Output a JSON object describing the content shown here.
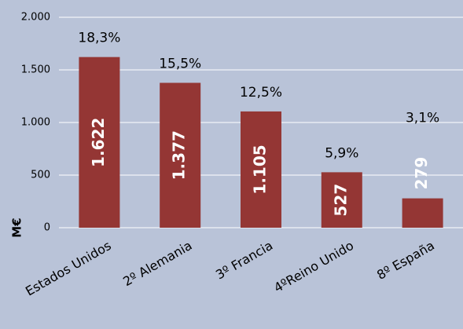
{
  "chart_data": {
    "type": "bar",
    "y_axis_label": "M€",
    "categories": [
      "Estados Unidos",
      "2º Alemania",
      "3º Francia",
      "4ºReino Unido",
      "8º España"
    ],
    "values": [
      1622,
      1377,
      1105,
      527,
      279
    ],
    "value_labels": [
      "1.622",
      "1.377",
      "1.105",
      "527",
      "279"
    ],
    "annotations": [
      "18,3%",
      "15,5%",
      "12,5%",
      "5,9%",
      "3,1%"
    ],
    "color": "#943634",
    "ylim": [
      0,
      2000
    ],
    "yticks": [
      0,
      500,
      {
        "value": 1000,
        "label": "1.000"
      },
      {
        "value": 1500,
        "label": "1.500"
      },
      {
        "value": 2000,
        "label": "2.000"
      }
    ],
    "grid": true
  }
}
